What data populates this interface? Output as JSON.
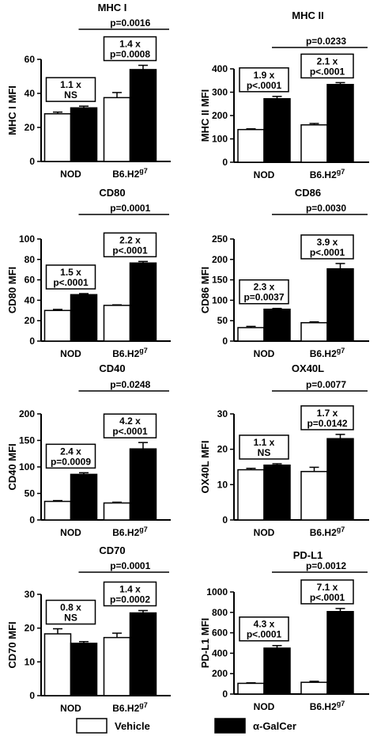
{
  "chart_data": [
    {
      "type": "bar",
      "title": "MHC I",
      "ylabel": "MHC I MFI",
      "categories": [
        "NOD",
        "B6.H2g7"
      ],
      "category_labels": [
        {
          "main": "NOD",
          "sup": ""
        },
        {
          "main": "B6.H2",
          "sup": "g7"
        }
      ],
      "series": [
        {
          "name": "Vehicle",
          "values": [
            28,
            37.5
          ],
          "errors": [
            1,
            3
          ]
        },
        {
          "name": "α-GalCer",
          "values": [
            31.5,
            54
          ],
          "errors": [
            1,
            2.5
          ]
        }
      ],
      "ylim": [
        0,
        60
      ],
      "yticks": [
        0,
        20,
        40,
        60
      ],
      "fold_annotations": [
        {
          "fold": "1.1 x",
          "p": "NS"
        },
        {
          "fold": "1.4 x",
          "p": "p=0.0008"
        }
      ],
      "comparison_p": "p=0.0016"
    },
    {
      "type": "bar",
      "title": "MHC II",
      "ylabel": "MHC II MFI",
      "categories": [
        "NOD",
        "B6.H2g7"
      ],
      "category_labels": [
        {
          "main": "NOD",
          "sup": ""
        },
        {
          "main": "B6.H2",
          "sup": "g7"
        }
      ],
      "series": [
        {
          "name": "Vehicle",
          "values": [
            140,
            160
          ],
          "errors": [
            3,
            6
          ]
        },
        {
          "name": "α-GalCer",
          "values": [
            272,
            333
          ],
          "errors": [
            10,
            8
          ]
        }
      ],
      "ylim": [
        0,
        400
      ],
      "yticks": [
        0,
        100,
        200,
        300,
        400
      ],
      "fold_annotations": [
        {
          "fold": "1.9 x",
          "p": "p<.0001"
        },
        {
          "fold": "2.1 x",
          "p": "p<.0001"
        }
      ],
      "comparison_p": "p=0.0233"
    },
    {
      "type": "bar",
      "title": "CD80",
      "ylabel": "CD80 MFI",
      "categories": [
        "NOD",
        "B6.H2g7"
      ],
      "category_labels": [
        {
          "main": "NOD",
          "sup": ""
        },
        {
          "main": "B6.H2",
          "sup": "g7"
        }
      ],
      "series": [
        {
          "name": "Vehicle",
          "values": [
            30,
            35
          ],
          "errors": [
            1,
            0.5
          ]
        },
        {
          "name": "α-GalCer",
          "values": [
            45.5,
            76.5
          ],
          "errors": [
            1,
            1.5
          ]
        }
      ],
      "ylim": [
        0,
        100
      ],
      "yticks": [
        0,
        20,
        40,
        60,
        80,
        100
      ],
      "fold_annotations": [
        {
          "fold": "1.5 x",
          "p": "p<.0001"
        },
        {
          "fold": "2.2 x",
          "p": "p<.0001"
        }
      ],
      "comparison_p": "p=0.0001"
    },
    {
      "type": "bar",
      "title": "CD86",
      "ylabel": "CD86 MFI",
      "categories": [
        "NOD",
        "B6.H2g7"
      ],
      "category_labels": [
        {
          "main": "NOD",
          "sup": ""
        },
        {
          "main": "B6.H2",
          "sup": "g7"
        }
      ],
      "series": [
        {
          "name": "Vehicle",
          "values": [
            33,
            45
          ],
          "errors": [
            3,
            2
          ]
        },
        {
          "name": "α-GalCer",
          "values": [
            78,
            177
          ],
          "errors": [
            2,
            13
          ]
        }
      ],
      "ylim": [
        0,
        250
      ],
      "yticks": [
        0,
        50,
        100,
        150,
        200,
        250
      ],
      "fold_annotations": [
        {
          "fold": "2.3 x",
          "p": "p=0.0037"
        },
        {
          "fold": "3.9 x",
          "p": "p<.0001"
        }
      ],
      "comparison_p": "p=0.0030"
    },
    {
      "type": "bar",
      "title": "CD40",
      "ylabel": "CD40 MFI",
      "categories": [
        "NOD",
        "B6.H2g7"
      ],
      "category_labels": [
        {
          "main": "NOD",
          "sup": ""
        },
        {
          "main": "B6.H2",
          "sup": "g7"
        }
      ],
      "series": [
        {
          "name": "Vehicle",
          "values": [
            35,
            32
          ],
          "errors": [
            1.5,
            1.5
          ]
        },
        {
          "name": "α-GalCer",
          "values": [
            86,
            134
          ],
          "errors": [
            3,
            12
          ]
        }
      ],
      "ylim": [
        0,
        200
      ],
      "yticks": [
        0,
        50,
        100,
        150,
        200
      ],
      "fold_annotations": [
        {
          "fold": "2.4 x",
          "p": "p=0.0009"
        },
        {
          "fold": "4.2 x",
          "p": "p<.0001"
        }
      ],
      "comparison_p": "p=0.0248"
    },
    {
      "type": "bar",
      "title": "OX40L",
      "ylabel": "OX40L MFI",
      "categories": [
        "NOD",
        "B6.H2g7"
      ],
      "category_labels": [
        {
          "main": "NOD",
          "sup": ""
        },
        {
          "main": "B6.H2",
          "sup": "g7"
        }
      ],
      "series": [
        {
          "name": "Vehicle",
          "values": [
            14.2,
            13.7
          ],
          "errors": [
            0.4,
            1.2
          ]
        },
        {
          "name": "α-GalCer",
          "values": [
            15.5,
            23
          ],
          "errors": [
            0.4,
            1.2
          ]
        }
      ],
      "ylim": [
        0,
        30
      ],
      "yticks": [
        0,
        10,
        20,
        30
      ],
      "fold_annotations": [
        {
          "fold": "1.1 x",
          "p": "NS"
        },
        {
          "fold": "1.7 x",
          "p": "p=0.0142"
        }
      ],
      "comparison_p": "p=0.0077"
    },
    {
      "type": "bar",
      "title": "CD70",
      "ylabel": "CD70 MFI",
      "categories": [
        "NOD",
        "B6.H2g7"
      ],
      "category_labels": [
        {
          "main": "NOD",
          "sup": ""
        },
        {
          "main": "B6.H2",
          "sup": "g7"
        }
      ],
      "series": [
        {
          "name": "Vehicle",
          "values": [
            18.3,
            17.2
          ],
          "errors": [
            1.5,
            1.3
          ]
        },
        {
          "name": "α-GalCer",
          "values": [
            15.5,
            24.5
          ],
          "errors": [
            0.5,
            0.7
          ]
        }
      ],
      "ylim": [
        0,
        30
      ],
      "yticks": [
        0,
        10,
        20,
        30
      ],
      "fold_annotations": [
        {
          "fold": "0.8 x",
          "p": "NS"
        },
        {
          "fold": "1.4 x",
          "p": "p=0.0002"
        }
      ],
      "comparison_p": "p=0.0001"
    },
    {
      "type": "bar",
      "title": "PD-L1",
      "ylabel": "PD-L1 MFI",
      "categories": [
        "NOD",
        "B6.H2g7"
      ],
      "category_labels": [
        {
          "main": "NOD",
          "sup": ""
        },
        {
          "main": "B6.H2",
          "sup": "g7"
        }
      ],
      "series": [
        {
          "name": "Vehicle",
          "values": [
            105,
            115
          ],
          "errors": [
            5,
            10
          ]
        },
        {
          "name": "α-GalCer",
          "values": [
            450,
            808
          ],
          "errors": [
            25,
            30
          ]
        }
      ],
      "ylim": [
        0,
        1000
      ],
      "yticks": [
        0,
        200,
        400,
        600,
        800,
        1000
      ],
      "fold_annotations": [
        {
          "fold": "4.3 x",
          "p": "p<.0001"
        },
        {
          "fold": "7.1 x",
          "p": "p<.0001"
        }
      ],
      "comparison_p": "p=0.0012"
    }
  ],
  "legend": [
    {
      "label": "Vehicle",
      "color": "#ffffff"
    },
    {
      "label": "α-GalCer",
      "color": "#000000"
    }
  ]
}
